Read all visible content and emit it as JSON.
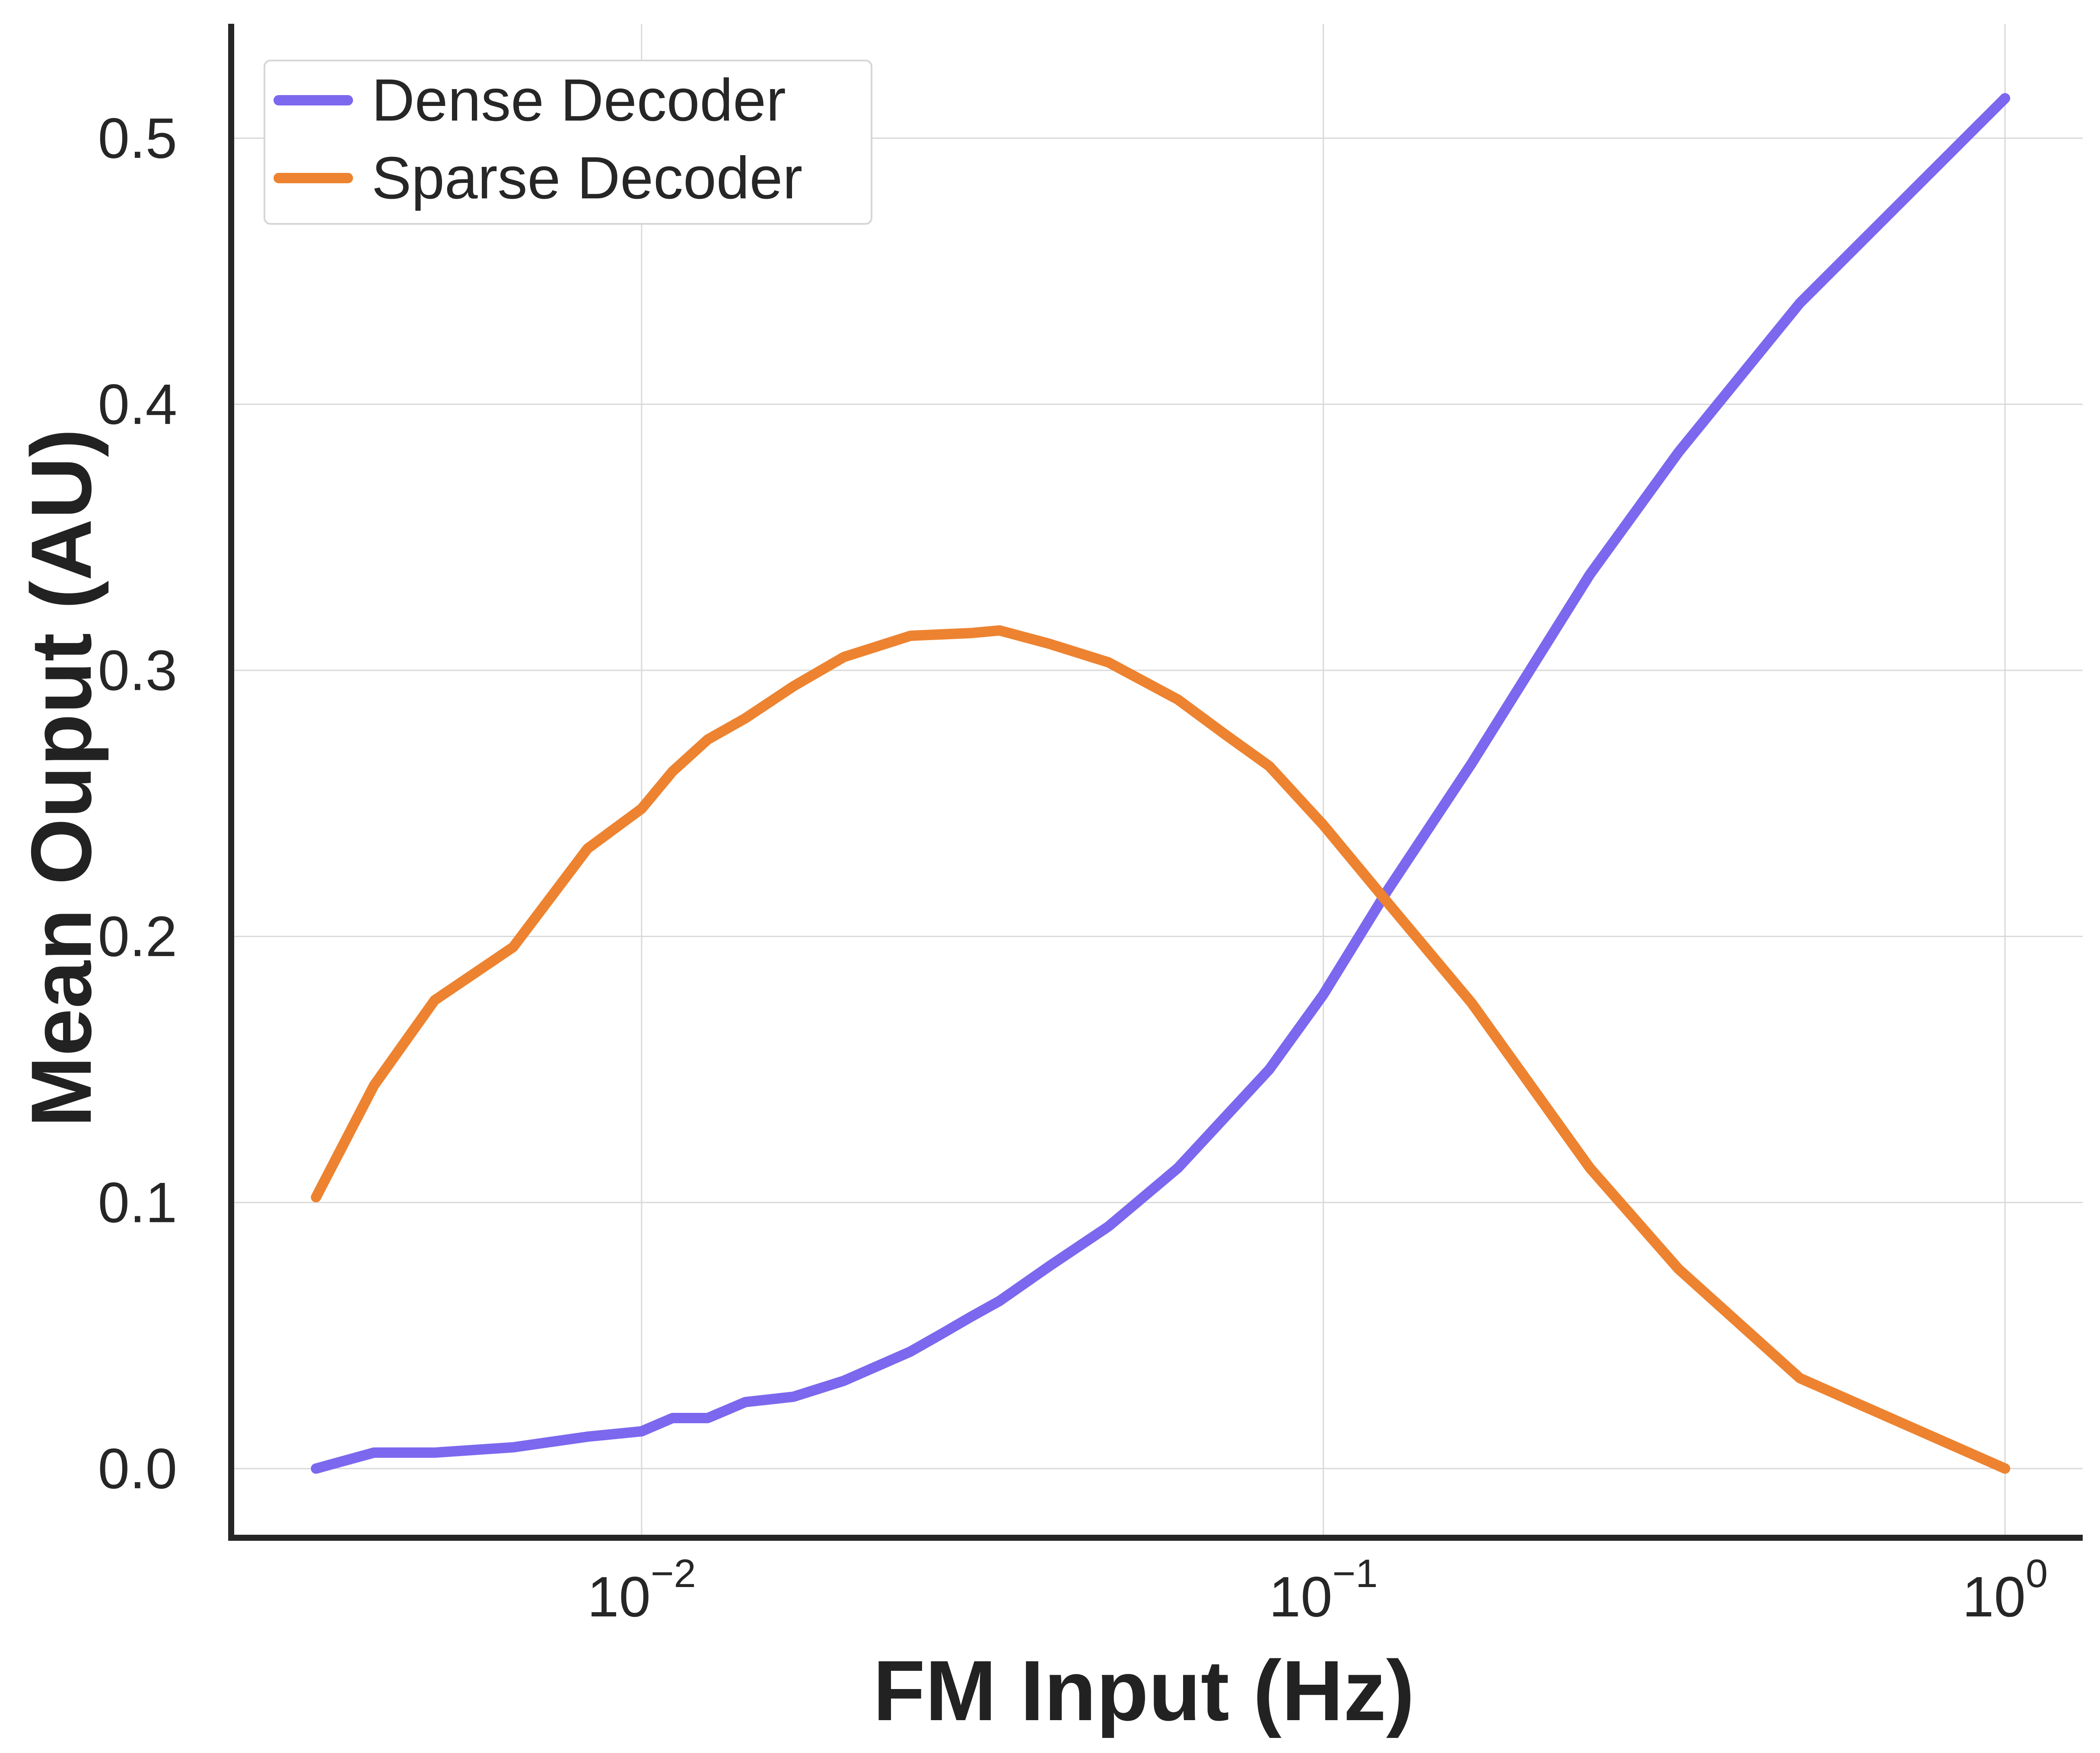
{
  "chart_data": {
    "type": "line",
    "title": "",
    "xlabel": "FM Input (Hz)",
    "ylabel": "Mean Ouput (AU)",
    "xscale": "log",
    "xlim": [
      0.0025,
      1.3
    ],
    "ylim": [
      -0.026,
      0.543
    ],
    "x_ticks": [
      {
        "value": 0.01,
        "base": "10",
        "exp": "−2"
      },
      {
        "value": 0.1,
        "base": "10",
        "exp": "−1"
      },
      {
        "value": 1,
        "base": "10",
        "exp": "0"
      }
    ],
    "y_ticks": [
      {
        "value": 0.0,
        "label": "0.0"
      },
      {
        "value": 0.1,
        "label": "0.1"
      },
      {
        "value": 0.2,
        "label": "0.2"
      },
      {
        "value": 0.3,
        "label": "0.3"
      },
      {
        "value": 0.4,
        "label": "0.4"
      },
      {
        "value": 0.5,
        "label": "0.5"
      }
    ],
    "grid": true,
    "legend_position": "top-left",
    "series": [
      {
        "name": "Dense Decoder",
        "color": "#7b68ee",
        "points": [
          [
            0.00333,
            0.0
          ],
          [
            0.00405,
            0.006
          ],
          [
            0.00497,
            0.006
          ],
          [
            0.00648,
            0.008
          ],
          [
            0.00833,
            0.012
          ],
          [
            0.01,
            0.014
          ],
          [
            0.0111,
            0.019
          ],
          [
            0.0125,
            0.019
          ],
          [
            0.0142,
            0.025
          ],
          [
            0.0167,
            0.027
          ],
          [
            0.0198,
            0.033
          ],
          [
            0.0248,
            0.044
          ],
          [
            0.0277,
            0.051
          ],
          [
            0.0304,
            0.057
          ],
          [
            0.0335,
            0.063
          ],
          [
            0.0396,
            0.076
          ],
          [
            0.0484,
            0.091
          ],
          [
            0.0612,
            0.113
          ],
          [
            0.0717,
            0.132
          ],
          [
            0.0833,
            0.15
          ],
          [
            0.0999,
            0.178
          ],
          [
            0.124,
            0.217
          ],
          [
            0.165,
            0.265
          ],
          [
            0.246,
            0.336
          ],
          [
            0.332,
            0.382
          ],
          [
            0.5,
            0.438
          ],
          [
            1.0,
            0.515
          ]
        ]
      },
      {
        "name": "Sparse Decoder",
        "color": "#ed8330",
        "points": [
          [
            0.00333,
            0.102
          ],
          [
            0.00405,
            0.144
          ],
          [
            0.00497,
            0.176
          ],
          [
            0.00648,
            0.196
          ],
          [
            0.00833,
            0.233
          ],
          [
            0.01,
            0.248
          ],
          [
            0.0111,
            0.262
          ],
          [
            0.0125,
            0.274
          ],
          [
            0.0142,
            0.282
          ],
          [
            0.0167,
            0.294
          ],
          [
            0.0198,
            0.305
          ],
          [
            0.0248,
            0.313
          ],
          [
            0.0304,
            0.314
          ],
          [
            0.0335,
            0.315
          ],
          [
            0.0396,
            0.31
          ],
          [
            0.0484,
            0.303
          ],
          [
            0.0612,
            0.289
          ],
          [
            0.0717,
            0.276
          ],
          [
            0.0833,
            0.264
          ],
          [
            0.0999,
            0.242
          ],
          [
            0.124,
            0.213
          ],
          [
            0.165,
            0.175
          ],
          [
            0.246,
            0.113
          ],
          [
            0.332,
            0.075
          ],
          [
            0.5,
            0.034
          ],
          [
            1.0,
            0.0
          ]
        ]
      }
    ]
  }
}
